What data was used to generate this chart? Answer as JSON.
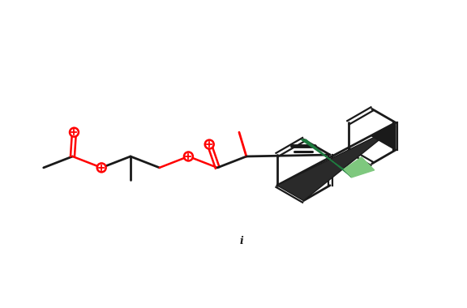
{
  "background": "#ffffff",
  "dark": "#1a1a1a",
  "gray": "#555555",
  "red": "#ff0000",
  "green": "#1e7a3e",
  "light_green": "#7ec87e",
  "figsize": [
    5.76,
    3.8
  ],
  "dpi": 100
}
